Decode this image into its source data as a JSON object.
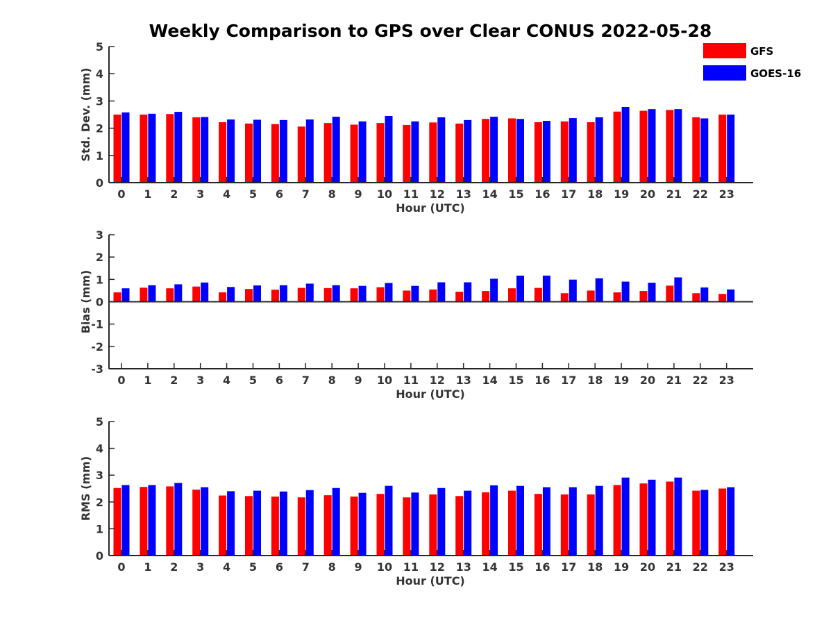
{
  "title": "Weekly Comparison to GPS over Clear CONUS 2022-05-28",
  "legend": {
    "items": [
      {
        "name": "GFS",
        "color": "#ff0000"
      },
      {
        "name": "GOES-16",
        "color": "#0000ff"
      }
    ],
    "placement": "top-right"
  },
  "chart_data": [
    {
      "type": "bar",
      "xlabel": "Hour (UTC)",
      "ylabel": "Std. Dev. (mm)",
      "ylim": [
        0,
        5
      ],
      "yticks": [
        0,
        1,
        2,
        3,
        4,
        5
      ],
      "grid": false,
      "categories": [
        "0",
        "1",
        "2",
        "3",
        "4",
        "5",
        "6",
        "7",
        "8",
        "9",
        "10",
        "11",
        "12",
        "13",
        "14",
        "15",
        "16",
        "17",
        "18",
        "19",
        "20",
        "21",
        "22",
        "23"
      ],
      "series": [
        {
          "name": "GFS",
          "color": "#ff0000",
          "values": [
            2.5,
            2.5,
            2.52,
            2.4,
            2.22,
            2.17,
            2.15,
            2.06,
            2.19,
            2.13,
            2.19,
            2.12,
            2.21,
            2.17,
            2.34,
            2.36,
            2.22,
            2.25,
            2.22,
            2.61,
            2.64,
            2.67,
            2.4,
            2.5
          ]
        },
        {
          "name": "GOES-16",
          "color": "#0000ff",
          "values": [
            2.58,
            2.53,
            2.6,
            2.41,
            2.32,
            2.31,
            2.3,
            2.32,
            2.42,
            2.25,
            2.45,
            2.25,
            2.4,
            2.3,
            2.42,
            2.34,
            2.27,
            2.37,
            2.4,
            2.78,
            2.7,
            2.7,
            2.36,
            2.5
          ]
        }
      ]
    },
    {
      "type": "bar",
      "xlabel": "Hour (UTC)",
      "ylabel": "Bias (mm)",
      "ylim": [
        -3,
        3
      ],
      "yticks": [
        -3,
        -2,
        -1,
        0,
        1,
        2,
        3
      ],
      "grid": false,
      "categories": [
        "0",
        "1",
        "2",
        "3",
        "4",
        "5",
        "6",
        "7",
        "8",
        "9",
        "10",
        "11",
        "12",
        "13",
        "14",
        "15",
        "16",
        "17",
        "18",
        "19",
        "20",
        "21",
        "22",
        "23"
      ],
      "series": [
        {
          "name": "GFS",
          "color": "#ff0000",
          "values": [
            0.42,
            0.63,
            0.6,
            0.68,
            0.42,
            0.57,
            0.54,
            0.62,
            0.61,
            0.6,
            0.65,
            0.5,
            0.55,
            0.45,
            0.48,
            0.6,
            0.62,
            0.38,
            0.5,
            0.42,
            0.48,
            0.72,
            0.38,
            0.35
          ]
        },
        {
          "name": "GOES-16",
          "color": "#0000ff",
          "values": [
            0.6,
            0.74,
            0.78,
            0.86,
            0.66,
            0.73,
            0.74,
            0.81,
            0.74,
            0.71,
            0.84,
            0.71,
            0.87,
            0.87,
            1.03,
            1.17,
            1.17,
            0.99,
            1.05,
            0.9,
            0.85,
            1.09,
            0.64,
            0.55
          ]
        }
      ]
    },
    {
      "type": "bar",
      "xlabel": "Hour (UTC)",
      "ylabel": "RMS (mm)",
      "ylim": [
        0,
        5
      ],
      "yticks": [
        0,
        1,
        2,
        3,
        4,
        5
      ],
      "grid": false,
      "categories": [
        "0",
        "1",
        "2",
        "3",
        "4",
        "5",
        "6",
        "7",
        "8",
        "9",
        "10",
        "11",
        "12",
        "13",
        "14",
        "15",
        "16",
        "17",
        "18",
        "19",
        "20",
        "21",
        "22",
        "23"
      ],
      "series": [
        {
          "name": "GFS",
          "color": "#ff0000",
          "values": [
            2.52,
            2.56,
            2.58,
            2.46,
            2.24,
            2.22,
            2.2,
            2.17,
            2.25,
            2.2,
            2.3,
            2.17,
            2.28,
            2.22,
            2.36,
            2.42,
            2.3,
            2.28,
            2.28,
            2.63,
            2.69,
            2.76,
            2.42,
            2.5
          ]
        },
        {
          "name": "GOES-16",
          "color": "#0000ff",
          "values": [
            2.63,
            2.63,
            2.71,
            2.55,
            2.4,
            2.42,
            2.39,
            2.44,
            2.52,
            2.34,
            2.6,
            2.35,
            2.52,
            2.42,
            2.62,
            2.6,
            2.55,
            2.55,
            2.6,
            2.91,
            2.83,
            2.91,
            2.45,
            2.55
          ]
        }
      ]
    }
  ]
}
